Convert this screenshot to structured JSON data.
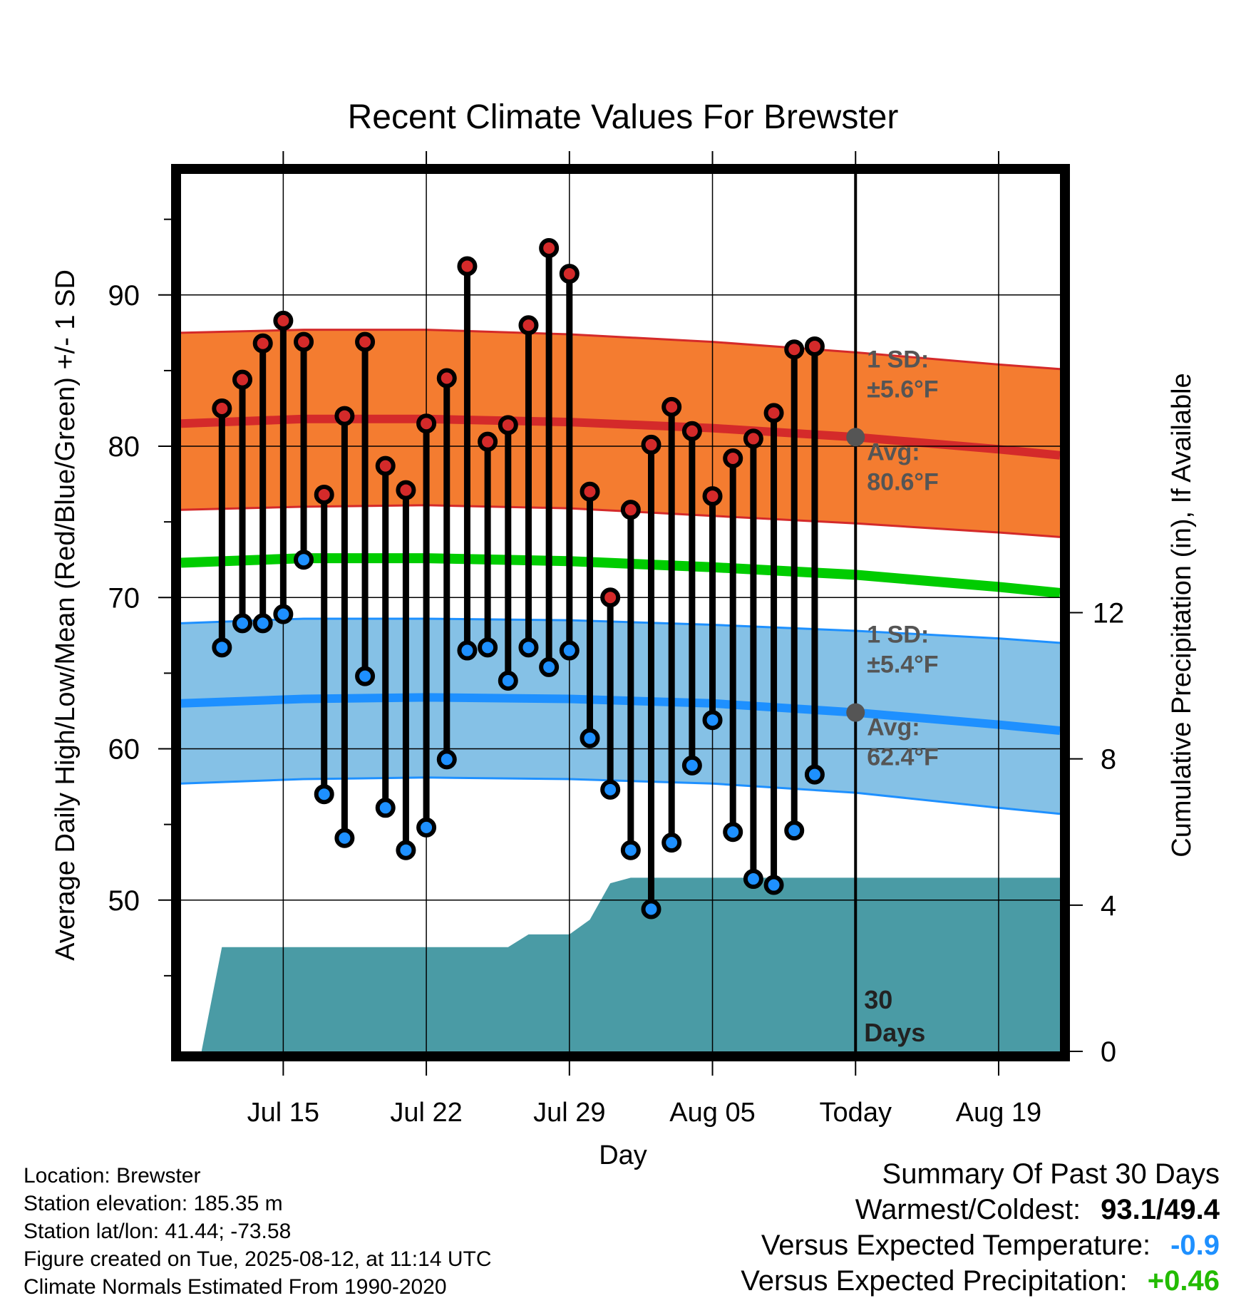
{
  "chart_data": {
    "type": "line",
    "title": "Recent Climate Values For Brewster",
    "xlabel": "Day",
    "ylabel": "Average Daily High/Low/Mean (Red/Blue/Green) +/- 1 SD",
    "y2label": "Cumulative Precipitation (in), If Available",
    "ylim": [
      40,
      98
    ],
    "yticks": [
      50,
      60,
      70,
      80,
      90
    ],
    "y2lim": [
      0,
      24
    ],
    "y2ticks": [
      0,
      4,
      8,
      12
    ],
    "xlim": [
      "2025-07-10",
      "2025-08-22"
    ],
    "xticks": [
      "2025-07-15",
      "2025-07-22",
      "2025-07-29",
      "2025-08-05",
      "2025-08-12",
      "2025-08-19"
    ],
    "xtick_labels": [
      "Jul 15",
      "Jul 22",
      "Jul 29",
      "Aug 05",
      "Today",
      "Aug 19"
    ],
    "grid": true,
    "today": "2025-08-12",
    "today_label": "30\nDays",
    "days": [
      "2025-07-12",
      "2025-07-13",
      "2025-07-14",
      "2025-07-15",
      "2025-07-16",
      "2025-07-17",
      "2025-07-18",
      "2025-07-19",
      "2025-07-20",
      "2025-07-21",
      "2025-07-22",
      "2025-07-23",
      "2025-07-24",
      "2025-07-25",
      "2025-07-26",
      "2025-07-27",
      "2025-07-28",
      "2025-07-29",
      "2025-07-30",
      "2025-07-31",
      "2025-08-01",
      "2025-08-02",
      "2025-08-03",
      "2025-08-04",
      "2025-08-05",
      "2025-08-06",
      "2025-08-07",
      "2025-08-08",
      "2025-08-09",
      "2025-08-10",
      "2025-08-11"
    ],
    "series": [
      {
        "name": "High",
        "color": "#d42a2a",
        "values": [
          82.5,
          84.4,
          86.8,
          88.3,
          86.9,
          76.8,
          82.0,
          86.9,
          78.7,
          77.1,
          81.5,
          84.5,
          91.9,
          80.3,
          81.4,
          88.0,
          93.1,
          91.4,
          77.0,
          70.0,
          75.8,
          80.1,
          82.6,
          81.0,
          76.7,
          79.2,
          80.5,
          82.2,
          86.4,
          86.6,
          null
        ]
      },
      {
        "name": "Low",
        "color": "#1e90ff",
        "values": [
          66.7,
          68.3,
          68.3,
          68.9,
          72.5,
          57.0,
          54.1,
          64.8,
          56.1,
          53.3,
          54.8,
          59.3,
          66.5,
          66.7,
          64.5,
          66.7,
          65.4,
          66.5,
          60.7,
          57.3,
          53.3,
          49.4,
          53.8,
          58.9,
          61.9,
          54.5,
          51.4,
          51.0,
          54.6,
          58.3,
          null
        ]
      }
    ],
    "normals": {
      "dates": [
        "2025-07-10",
        "2025-07-16",
        "2025-07-22",
        "2025-07-29",
        "2025-08-05",
        "2025-08-12",
        "2025-08-19",
        "2025-08-22"
      ],
      "high_mean": [
        81.5,
        81.8,
        81.8,
        81.6,
        81.2,
        80.6,
        79.8,
        79.4
      ],
      "high_upper": [
        87.5,
        87.7,
        87.7,
        87.4,
        86.9,
        86.2,
        85.4,
        85.1
      ],
      "high_lower": [
        75.8,
        76.0,
        76.1,
        75.9,
        75.4,
        74.9,
        74.3,
        74.0
      ],
      "mean": [
        72.3,
        72.6,
        72.6,
        72.4,
        72.0,
        71.5,
        70.7,
        70.3
      ],
      "low_mean": [
        63.0,
        63.3,
        63.4,
        63.3,
        63.0,
        62.4,
        61.6,
        61.2
      ],
      "low_upper": [
        68.3,
        68.6,
        68.6,
        68.5,
        68.2,
        67.8,
        67.3,
        67.0
      ],
      "low_lower": [
        57.7,
        58.0,
        58.1,
        58.0,
        57.7,
        57.1,
        56.1,
        55.7
      ]
    },
    "precip": {
      "dates": [
        "2025-07-11",
        "2025-07-12",
        "2025-07-26",
        "2025-07-27",
        "2025-07-29",
        "2025-07-30",
        "2025-07-31",
        "2025-08-01",
        "2025-08-22"
      ],
      "values": [
        0.0,
        2.85,
        2.85,
        3.2,
        3.2,
        3.6,
        4.6,
        4.75,
        4.75
      ],
      "color": "#4a9ba5"
    },
    "annotations": {
      "high_sd": "1 SD:\n±5.6°F",
      "high_avg": "Avg:\n80.6°F",
      "high_avg_value": 80.6,
      "low_sd": "1 SD:\n±5.4°F",
      "low_avg": "Avg:\n62.4°F",
      "low_avg_value": 62.4
    },
    "colors": {
      "high_band": "#f47c30",
      "high_edge": "#d42a2a",
      "low_band": "#85c1e6",
      "low_edge": "#1e90ff",
      "mean_line": "#00cc00",
      "annotation": "#555555"
    }
  },
  "info": {
    "location": "Location: Brewster",
    "elevation": "Station elevation: 185.35 m",
    "latlon": "Station lat/lon: 41.44; -73.58",
    "created": "Figure created on Tue, 2025-08-12, at 11:14 UTC",
    "normals": "Climate Normals Estimated From 1990-2020"
  },
  "summary": {
    "title": "Summary Of Past 30 Days",
    "warm_cold_label": "Warmest/Coldest:",
    "warm_cold_value": "93.1/49.4",
    "temp_label": "Versus Expected Temperature:",
    "temp_value": "-0.9",
    "temp_color": "#1e90ff",
    "precip_label": "Versus Expected Precipitation:",
    "precip_value": "+0.46",
    "precip_color": "#22bb00"
  }
}
